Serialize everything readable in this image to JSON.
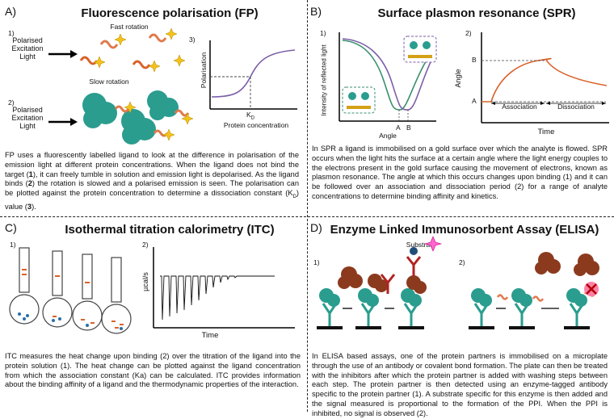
{
  "fp": {
    "label": "A)",
    "title": "Fluorescence polarisation (FP)",
    "step1": "1)",
    "step2": "2)",
    "step3": "3)",
    "light1": "Polarised Excitation Light",
    "light2": "Polarised Excitation Light",
    "fast": "Fast rotation",
    "slow": "Slow rotation",
    "ylabel": "Polarisation",
    "kd": "K",
    "kd_sub": "D",
    "xlabel": "Protein concentration",
    "text": [
      {
        "t": "FP uses a fluorescently labelled ligand to look at the difference in polarisation of the emission light at different protein concentrations. When the ligand does not bind the target ("
      },
      {
        "b": "1"
      },
      {
        "t": "), it can freely tumble in solution and emission light is depolarised. As the ligand binds ("
      },
      {
        "b": "2"
      },
      {
        "t": ") the rotation is slowed and a polarised emission is seen. The polarisation can be plotted against the protein concentration to determine a dissociation constant (K"
      },
      {
        "s": "D"
      },
      {
        "t": ") value ("
      },
      {
        "b": "3"
      },
      {
        "t": ")."
      }
    ]
  },
  "spr": {
    "label": "B)",
    "title": "Surface plasmon resonance (SPR)",
    "step1": "1)",
    "step2": "2)",
    "ylabel1": "Intensity of reflected light",
    "xlabel1": "Angle",
    "a": "A",
    "b": "B",
    "ylabel2": "Angle",
    "yb": "B",
    "ya": "A",
    "association": "Association",
    "dissociation": "Dissociation",
    "xlabel2": "Time",
    "text": "In SPR a ligand is immobilised on a gold surface over which the analyte is flowed. SPR occurs when the light hits the surface at a certain angle where the light energy couples to the electrons present in the gold surface causing the movement of electrons, known as plasmon resonance. The angle at which this occurs changes upon binding (1) and it can be followed over an association and dissociation period (2) for a range of analyte concentrations to determine binding affinity and kinetics."
  },
  "itc": {
    "label": "C)",
    "title": "Isothermal titration calorimetry (ITC)",
    "step1": "1)",
    "step2": "2)",
    "ylabel": "µcal/s",
    "xlabel": "Time",
    "text": "ITC measures the heat change upon binding (2) over the titration of the ligand into the protein solution (1). The heat change can be plotted against the ligand concentration from which the association constant (Ka) can be calculated. ITC provides information about the binding affinity of a ligand and the thermodynamic properties of the interaction."
  },
  "elisa": {
    "label": "D)",
    "title": "Enzyme Linked Immunosorbent Assay (ELISA)",
    "step1": "1)",
    "step2": "2)",
    "substrate": "Substrate",
    "text": "In ELISA based assays, one of the protein partners is immobilised on a microplate through the use of an antibody or covalent bond formation. The plate can then be treated with the inhibitors after which the protein partner is added with washing steps between each step. The protein partner is then detected using an enzyme-tagged antibody specific to the protein partner (1). A substrate specific for this enzyme is then added and the signal measured is proportional to the formation of the PPI. When the PPI is inhibited, no signal is observed (2)."
  },
  "colors": {
    "teal": "#2a9d8f",
    "brown": "#8b3a1e",
    "orange": "#d9622b",
    "purple": "#7b5ea7",
    "green": "#3a8f6f",
    "gold": "#d4a017",
    "divider": "#222222"
  }
}
